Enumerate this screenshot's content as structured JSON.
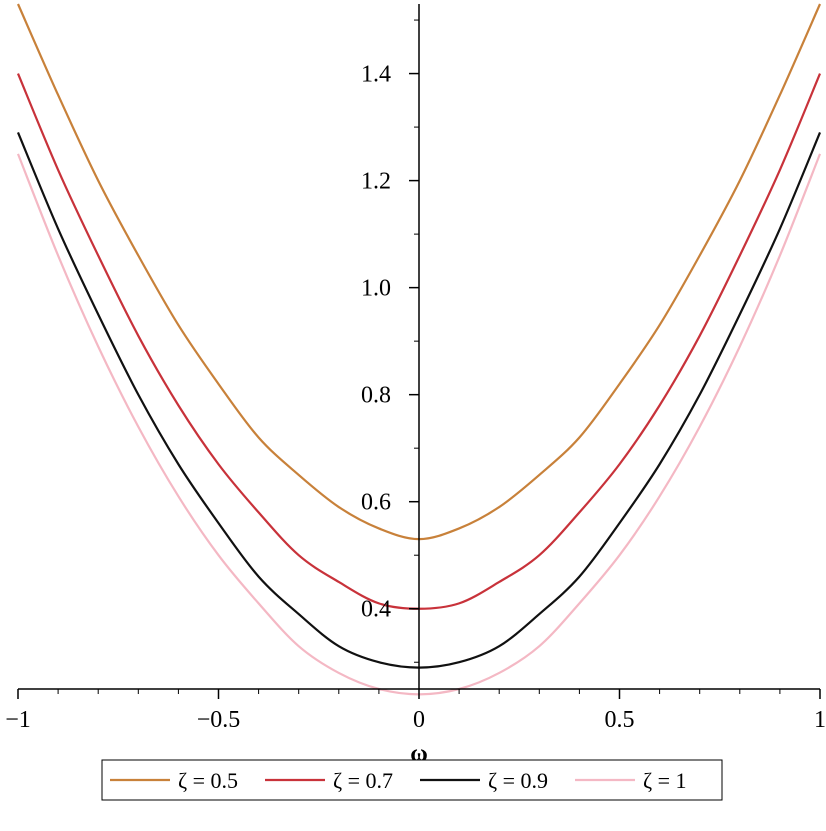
{
  "chart_data": {
    "type": "line",
    "xlabel": "ω",
    "ylabel": "",
    "xlim": [
      -1,
      1
    ],
    "ylim": [
      0.25,
      1.53
    ],
    "x_ticks": [
      -1,
      -0.5,
      0,
      0.5,
      1
    ],
    "x_tick_labels": [
      "−1",
      "−0.5",
      "0",
      "0.5",
      "1"
    ],
    "y_ticks": [
      0.4,
      0.6,
      0.8,
      1.0,
      1.2,
      1.4
    ],
    "y_tick_labels": [
      "0.4",
      "0.6",
      "0.8",
      "1.0",
      "1.2",
      "1.4"
    ],
    "grid": false,
    "legend_position": "bottom",
    "series": [
      {
        "name": "ζ = 0.5",
        "color": "#c8813a",
        "x": [
          -1,
          -0.9,
          -0.8,
          -0.7,
          -0.6,
          -0.5,
          -0.4,
          -0.3,
          -0.2,
          -0.1,
          0,
          0.1,
          0.2,
          0.3,
          0.4,
          0.5,
          0.6,
          0.7,
          0.8,
          0.9,
          1
        ],
        "values": [
          1.53,
          1.36,
          1.2,
          1.06,
          0.93,
          0.82,
          0.72,
          0.65,
          0.59,
          0.55,
          0.53,
          0.55,
          0.59,
          0.65,
          0.72,
          0.82,
          0.93,
          1.06,
          1.2,
          1.36,
          1.53
        ]
      },
      {
        "name": "ζ = 0.7",
        "color": "#c8323a",
        "x": [
          -1,
          -0.9,
          -0.8,
          -0.7,
          -0.6,
          -0.5,
          -0.4,
          -0.3,
          -0.2,
          -0.1,
          0,
          0.1,
          0.2,
          0.3,
          0.4,
          0.5,
          0.6,
          0.7,
          0.8,
          0.9,
          1
        ],
        "values": [
          1.4,
          1.22,
          1.06,
          0.91,
          0.78,
          0.67,
          0.58,
          0.5,
          0.45,
          0.41,
          0.4,
          0.41,
          0.45,
          0.5,
          0.58,
          0.67,
          0.78,
          0.91,
          1.06,
          1.22,
          1.4
        ]
      },
      {
        "name": "ζ = 0.9",
        "color": "#111111",
        "x": [
          -1,
          -0.9,
          -0.8,
          -0.7,
          -0.6,
          -0.5,
          -0.4,
          -0.3,
          -0.2,
          -0.1,
          0,
          0.1,
          0.2,
          0.3,
          0.4,
          0.5,
          0.6,
          0.7,
          0.8,
          0.9,
          1
        ],
        "values": [
          1.29,
          1.11,
          0.95,
          0.8,
          0.67,
          0.56,
          0.46,
          0.39,
          0.33,
          0.3,
          0.29,
          0.3,
          0.33,
          0.39,
          0.46,
          0.56,
          0.67,
          0.8,
          0.95,
          1.11,
          1.29
        ]
      },
      {
        "name": "ζ = 1",
        "color": "#f4b8c4",
        "x": [
          -1,
          -0.9,
          -0.8,
          -0.7,
          -0.6,
          -0.5,
          -0.4,
          -0.3,
          -0.2,
          -0.1,
          0,
          0.1,
          0.2,
          0.3,
          0.4,
          0.5,
          0.6,
          0.7,
          0.8,
          0.9,
          1
        ],
        "values": [
          1.25,
          1.06,
          0.89,
          0.74,
          0.61,
          0.5,
          0.41,
          0.33,
          0.28,
          0.25,
          0.24,
          0.25,
          0.28,
          0.33,
          0.41,
          0.5,
          0.61,
          0.74,
          0.89,
          1.06,
          1.25
        ]
      }
    ]
  }
}
